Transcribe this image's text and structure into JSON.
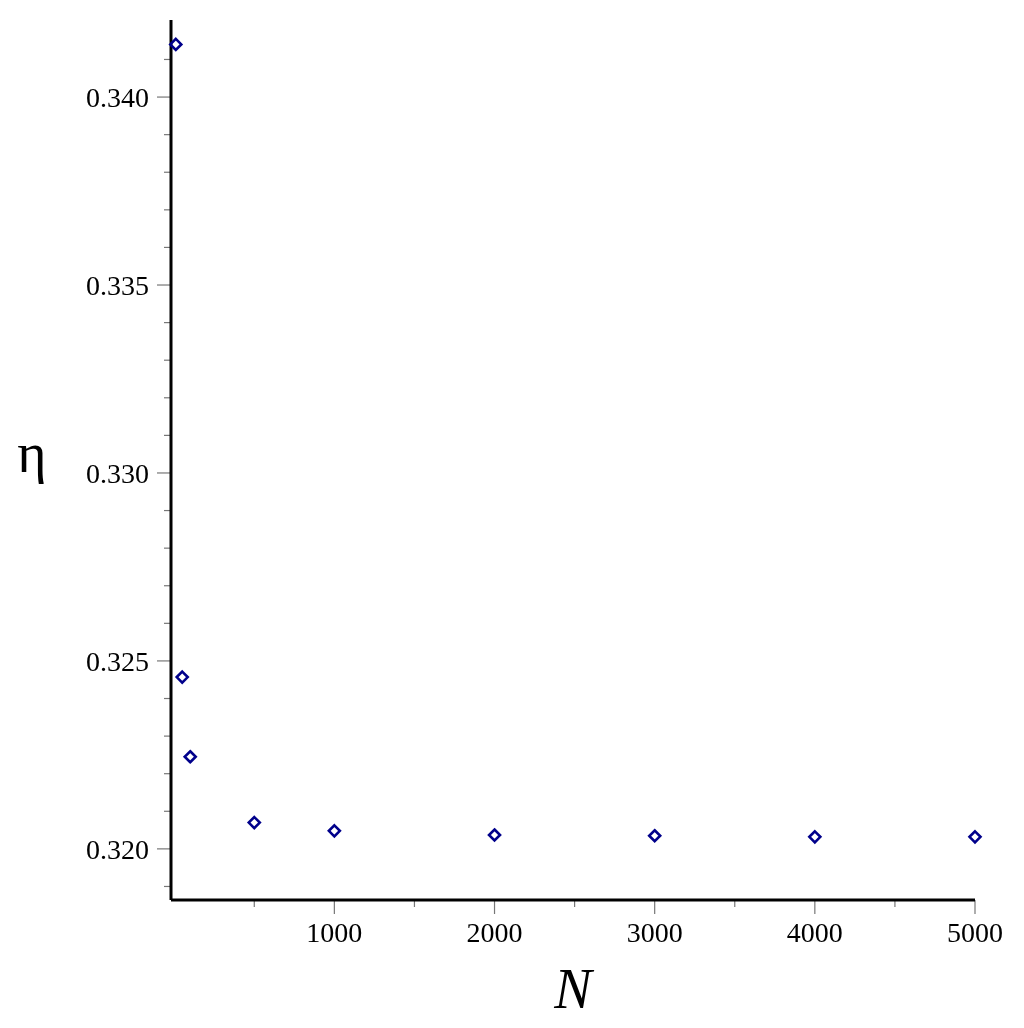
{
  "chart_data": {
    "type": "scatter",
    "xlabel": "N",
    "ylabel": "η",
    "x": [
      10,
      50,
      100,
      500,
      1000,
      2000,
      3000,
      4000,
      5000
    ],
    "series": [
      {
        "color": "#00008b",
        "values": [
          0.3414,
          0.32457,
          0.32245,
          0.3207,
          0.32048,
          0.32037,
          0.32035,
          0.32032,
          0.32032
        ]
      }
    ],
    "marker": "diamond",
    "xlim": [
      -20,
      5000
    ],
    "ylim": [
      0.31864,
      0.34205
    ],
    "xticks": [
      {
        "value": 500,
        "label": null
      },
      1000,
      {
        "value": 1500,
        "label": null
      },
      2000,
      {
        "value": 2500,
        "label": null
      },
      3000,
      {
        "value": 3500,
        "label": null
      },
      4000,
      {
        "value": 4500,
        "label": null
      },
      5000
    ],
    "yticks": [
      {
        "value": 0.319,
        "label": null
      },
      {
        "value": 0.32,
        "label": "0.320"
      },
      {
        "value": 0.321,
        "label": null
      },
      {
        "value": 0.322,
        "label": null
      },
      {
        "value": 0.323,
        "label": null
      },
      {
        "value": 0.324,
        "label": null
      },
      {
        "value": 0.325,
        "label": "0.325"
      },
      {
        "value": 0.326,
        "label": null
      },
      {
        "value": 0.327,
        "label": null
      },
      {
        "value": 0.328,
        "label": null
      },
      {
        "value": 0.329,
        "label": null
      },
      {
        "value": 0.33,
        "label": "0.330"
      },
      {
        "value": 0.331,
        "label": null
      },
      {
        "value": 0.332,
        "label": null
      },
      {
        "value": 0.333,
        "label": null
      },
      {
        "value": 0.334,
        "label": null
      },
      {
        "value": 0.335,
        "label": "0.335"
      },
      {
        "value": 0.336,
        "label": null
      },
      {
        "value": 0.337,
        "label": null
      },
      {
        "value": 0.338,
        "label": null
      },
      {
        "value": 0.339,
        "label": null
      },
      {
        "value": 0.34,
        "label": "0.340"
      },
      {
        "value": 0.341,
        "label": null
      }
    ],
    "grid": false
  }
}
